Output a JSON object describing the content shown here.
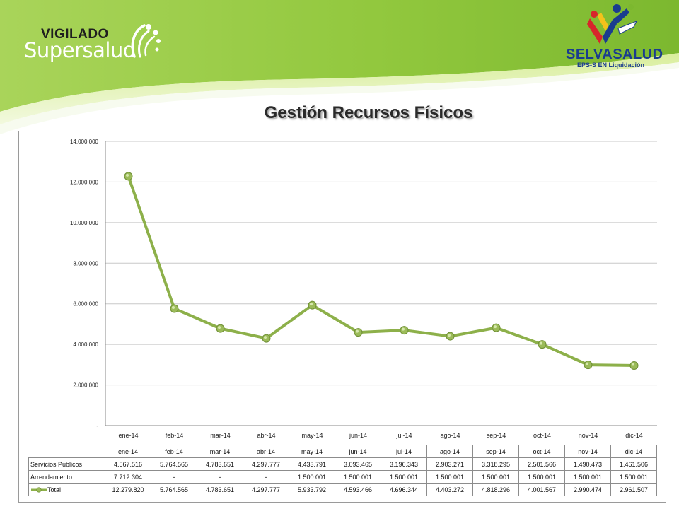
{
  "slide": {
    "title": "Gestión Recursos Físicos"
  },
  "logos": {
    "supersalud_top": "VIGILADO",
    "supersalud_bottom": "Supersalud",
    "selvasalud_name": "SELVASALUD",
    "selvasalud_sub": "EPS-S EN Liquidación"
  },
  "colors": {
    "banner_green": "#8cc63f",
    "line_green": "#8db04a",
    "marker_green": "#9bbb59",
    "selva_blue": "#1a3c8f",
    "selva_red": "#d7262b"
  },
  "chart_data": {
    "type": "line",
    "categories": [
      "ene-14",
      "feb-14",
      "mar-14",
      "abr-14",
      "may-14",
      "jun-14",
      "jul-14",
      "ago-14",
      "sep-14",
      "oct-14",
      "nov-14",
      "dic-14"
    ],
    "series": [
      {
        "name": "Total",
        "values": [
          12279820,
          5764565,
          4783651,
          4297777,
          5933792,
          4593466,
          4696344,
          4403272,
          4818296,
          4001567,
          2990474,
          2961507
        ]
      }
    ],
    "ylim": [
      0,
      14000000
    ],
    "yticks": [
      0,
      2000000,
      4000000,
      6000000,
      8000000,
      10000000,
      12000000,
      14000000
    ],
    "ytick_labels": [
      "-",
      "2.000.000",
      "4.000.000",
      "6.000.000",
      "8.000.000",
      "10.000.000",
      "12.000.000",
      "14.000.000"
    ],
    "grid": true,
    "legend": "in data table",
    "data_table": {
      "header": [
        "ene-14",
        "feb-14",
        "mar-14",
        "abr-14",
        "may-14",
        "jun-14",
        "jul-14",
        "ago-14",
        "sep-14",
        "oct-14",
        "nov-14",
        "dic-14"
      ],
      "rows": [
        {
          "label": "Servicios Públicos",
          "values": [
            "4.567.516",
            "5.764.565",
            "4.783.651",
            "4.297.777",
            "4.433.791",
            "3.093.465",
            "3.196.343",
            "2.903.271",
            "3.318.295",
            "2.501.566",
            "1.490.473",
            "1.461.506"
          ]
        },
        {
          "label": "Arrendamiento",
          "values": [
            "7.712.304",
            "-",
            "-",
            "-",
            "1.500.001",
            "1.500.001",
            "1.500.001",
            "1.500.001",
            "1.500.001",
            "1.500.001",
            "1.500.001",
            "1.500.001"
          ]
        },
        {
          "label": "Total",
          "values": [
            "12.279.820",
            "5.764.565",
            "4.783.651",
            "4.297.777",
            "5.933.792",
            "4.593.466",
            "4.696.344",
            "4.403.272",
            "4.818.296",
            "4.001.567",
            "2.990.474",
            "2.961.507"
          ]
        }
      ]
    }
  }
}
